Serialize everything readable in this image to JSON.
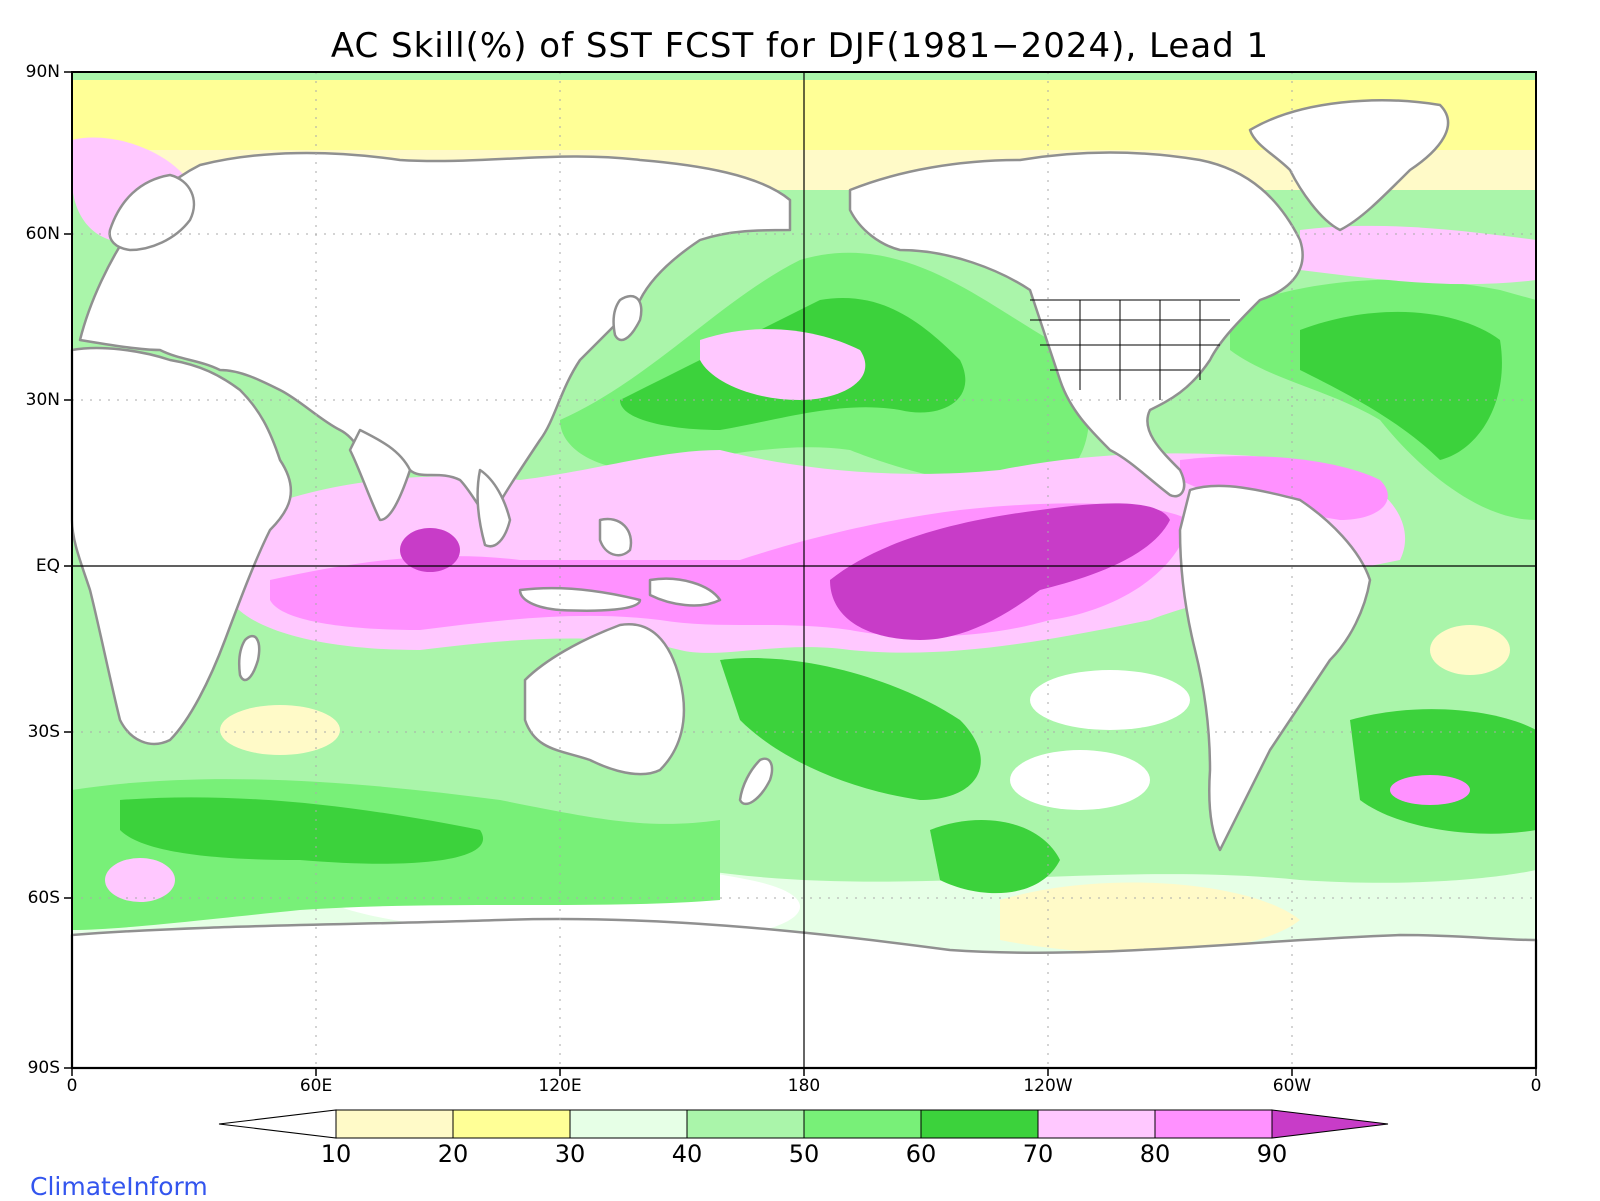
{
  "title": "AC Skill(%) of SST FCST for DJF(1981−2024), Lead 1",
  "credit": "ClimateInform",
  "lat_labels": [
    "90N",
    "60N",
    "30N",
    "EQ",
    "30S",
    "60S",
    "90S"
  ],
  "lon_labels": [
    "0",
    "60E",
    "120E",
    "180",
    "120W",
    "60W",
    "0"
  ],
  "colorbar": {
    "labels": [
      "10",
      "20",
      "30",
      "40",
      "50",
      "60",
      "70",
      "80",
      "90"
    ],
    "colors": [
      "#ffffff",
      "#fffac8",
      "#ffff96",
      "#e6ffe6",
      "#aaf5aa",
      "#78f078",
      "#3cd23c",
      "#ffc8ff",
      "#ff91ff",
      "#c83cc8"
    ]
  },
  "colors": {
    "coast": "#909090",
    "us_borders": "#000000",
    "grid": "#aaaaaa",
    "credit": "#3355ee"
  }
}
